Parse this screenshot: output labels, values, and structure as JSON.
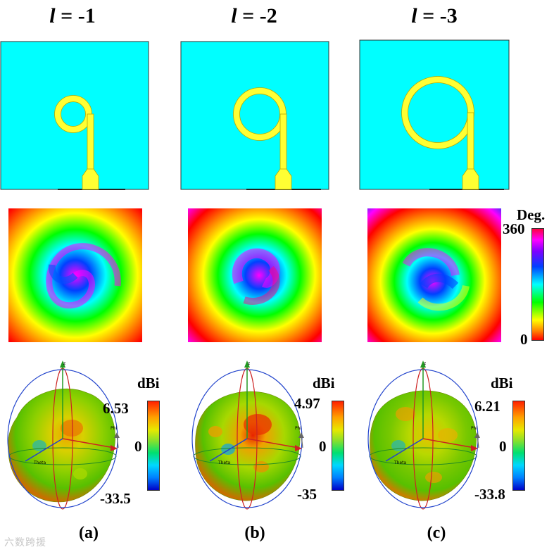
{
  "columns": [
    {
      "l_symbol": "l",
      "l_value": "= -1",
      "label": "(a)",
      "db_max": "6.53",
      "db_mid": "0",
      "db_min": "-33.5"
    },
    {
      "l_symbol": "l",
      "l_value": "= -2",
      "label": "(b)",
      "db_max": "4.97",
      "db_mid": "0",
      "db_min": "-35"
    },
    {
      "l_symbol": "l",
      "l_value": "= -3",
      "label": "(c)",
      "db_max": "6.21",
      "db_mid": "0",
      "db_min": "-33.8"
    }
  ],
  "phase_scale": {
    "unit": "Deg.",
    "max": "360",
    "min": "0"
  },
  "pattern_unit": "dBi",
  "axis_labels": {
    "z": "z",
    "phi": "Phi",
    "theta": "Theta"
  },
  "colors": {
    "substrate": "#00ffff",
    "antenna_metal": "#ffff33"
  },
  "watermark": "六数跨援"
}
